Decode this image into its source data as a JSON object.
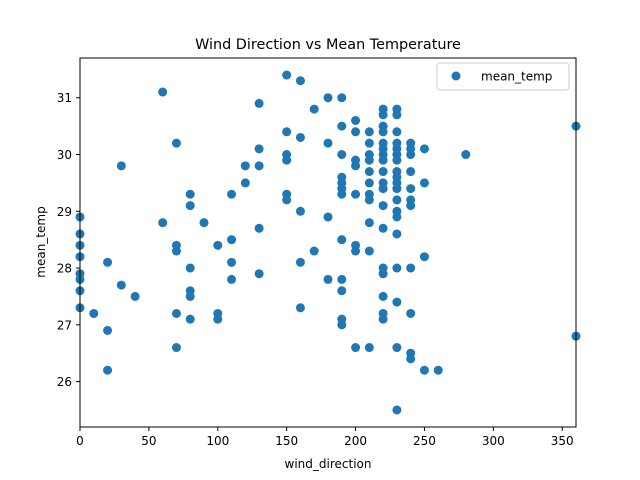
{
  "chart_data": {
    "type": "scatter",
    "title": "Wind Direction vs Mean Temperature",
    "xlabel": "wind_direction",
    "ylabel": "mean_temp",
    "xlim": [
      0,
      360
    ],
    "ylim": [
      25.2,
      31.7
    ],
    "xticks": [
      0,
      50,
      100,
      150,
      200,
      250,
      300,
      350
    ],
    "yticks": [
      26,
      27,
      28,
      29,
      30,
      31
    ],
    "grid": false,
    "legend_position": "top-right",
    "colors": {
      "series": "#1f77b4"
    },
    "series": [
      {
        "name": "mean_temp",
        "points": [
          [
            0,
            28.9
          ],
          [
            0,
            28.6
          ],
          [
            0,
            28.4
          ],
          [
            0,
            28.2
          ],
          [
            0,
            27.9
          ],
          [
            0,
            27.8
          ],
          [
            0,
            27.6
          ],
          [
            0,
            27.3
          ],
          [
            10,
            27.2
          ],
          [
            20,
            28.1
          ],
          [
            20,
            26.9
          ],
          [
            20,
            26.2
          ],
          [
            30,
            29.8
          ],
          [
            30,
            27.7
          ],
          [
            40,
            27.5
          ],
          [
            60,
            31.1
          ],
          [
            60,
            28.8
          ],
          [
            70,
            30.2
          ],
          [
            70,
            28.4
          ],
          [
            70,
            28.3
          ],
          [
            70,
            27.2
          ],
          [
            70,
            26.6
          ],
          [
            80,
            29.3
          ],
          [
            80,
            29.1
          ],
          [
            80,
            28.0
          ],
          [
            80,
            27.6
          ],
          [
            80,
            27.5
          ],
          [
            80,
            27.1
          ],
          [
            90,
            28.8
          ],
          [
            100,
            28.4
          ],
          [
            100,
            27.2
          ],
          [
            100,
            27.1
          ],
          [
            110,
            29.3
          ],
          [
            110,
            28.5
          ],
          [
            110,
            28.1
          ],
          [
            110,
            27.8
          ],
          [
            120,
            29.8
          ],
          [
            120,
            29.5
          ],
          [
            130,
            30.9
          ],
          [
            130,
            30.1
          ],
          [
            130,
            29.8
          ],
          [
            130,
            28.7
          ],
          [
            130,
            27.9
          ],
          [
            150,
            31.4
          ],
          [
            150,
            30.4
          ],
          [
            150,
            30.0
          ],
          [
            150,
            29.9
          ],
          [
            150,
            29.3
          ],
          [
            150,
            29.2
          ],
          [
            160,
            31.3
          ],
          [
            160,
            30.3
          ],
          [
            160,
            29.0
          ],
          [
            160,
            28.1
          ],
          [
            160,
            27.3
          ],
          [
            170,
            30.8
          ],
          [
            170,
            28.3
          ],
          [
            180,
            31.0
          ],
          [
            180,
            30.2
          ],
          [
            180,
            28.9
          ],
          [
            180,
            27.8
          ],
          [
            190,
            31.0
          ],
          [
            190,
            30.5
          ],
          [
            190,
            30.0
          ],
          [
            190,
            29.6
          ],
          [
            190,
            29.5
          ],
          [
            190,
            29.4
          ],
          [
            190,
            29.3
          ],
          [
            190,
            28.5
          ],
          [
            190,
            27.8
          ],
          [
            190,
            27.6
          ],
          [
            190,
            27.1
          ],
          [
            190,
            27.0
          ],
          [
            200,
            30.6
          ],
          [
            200,
            30.4
          ],
          [
            200,
            29.9
          ],
          [
            200,
            29.8
          ],
          [
            200,
            29.3
          ],
          [
            200,
            28.4
          ],
          [
            200,
            28.3
          ],
          [
            200,
            26.6
          ],
          [
            210,
            30.4
          ],
          [
            210,
            30.2
          ],
          [
            210,
            30.0
          ],
          [
            210,
            29.9
          ],
          [
            210,
            29.7
          ],
          [
            210,
            29.5
          ],
          [
            210,
            29.3
          ],
          [
            210,
            29.2
          ],
          [
            210,
            28.8
          ],
          [
            210,
            28.3
          ],
          [
            210,
            26.6
          ],
          [
            220,
            30.8
          ],
          [
            220,
            30.7
          ],
          [
            220,
            30.5
          ],
          [
            220,
            30.4
          ],
          [
            220,
            30.2
          ],
          [
            220,
            30.1
          ],
          [
            220,
            30.0
          ],
          [
            220,
            29.9
          ],
          [
            220,
            29.7
          ],
          [
            220,
            29.5
          ],
          [
            220,
            29.4
          ],
          [
            220,
            29.1
          ],
          [
            220,
            28.7
          ],
          [
            220,
            28.0
          ],
          [
            220,
            27.9
          ],
          [
            220,
            27.5
          ],
          [
            220,
            27.2
          ],
          [
            220,
            27.1
          ],
          [
            230,
            30.8
          ],
          [
            230,
            30.7
          ],
          [
            230,
            30.4
          ],
          [
            230,
            30.2
          ],
          [
            230,
            30.1
          ],
          [
            230,
            30.0
          ],
          [
            230,
            29.9
          ],
          [
            230,
            29.7
          ],
          [
            230,
            29.6
          ],
          [
            230,
            29.5
          ],
          [
            230,
            29.4
          ],
          [
            230,
            29.2
          ],
          [
            230,
            29.0
          ],
          [
            230,
            28.9
          ],
          [
            230,
            28.6
          ],
          [
            230,
            28.0
          ],
          [
            230,
            27.4
          ],
          [
            230,
            26.6
          ],
          [
            230,
            25.5
          ],
          [
            240,
            30.2
          ],
          [
            240,
            30.1
          ],
          [
            240,
            30.0
          ],
          [
            240,
            29.7
          ],
          [
            240,
            29.4
          ],
          [
            240,
            29.2
          ],
          [
            240,
            29.1
          ],
          [
            240,
            28.0
          ],
          [
            240,
            27.2
          ],
          [
            240,
            26.5
          ],
          [
            240,
            26.4
          ],
          [
            250,
            30.1
          ],
          [
            250,
            29.5
          ],
          [
            250,
            28.2
          ],
          [
            250,
            26.2
          ],
          [
            260,
            26.2
          ],
          [
            280,
            30.0
          ],
          [
            360,
            30.5
          ],
          [
            360,
            26.8
          ]
        ]
      }
    ]
  }
}
